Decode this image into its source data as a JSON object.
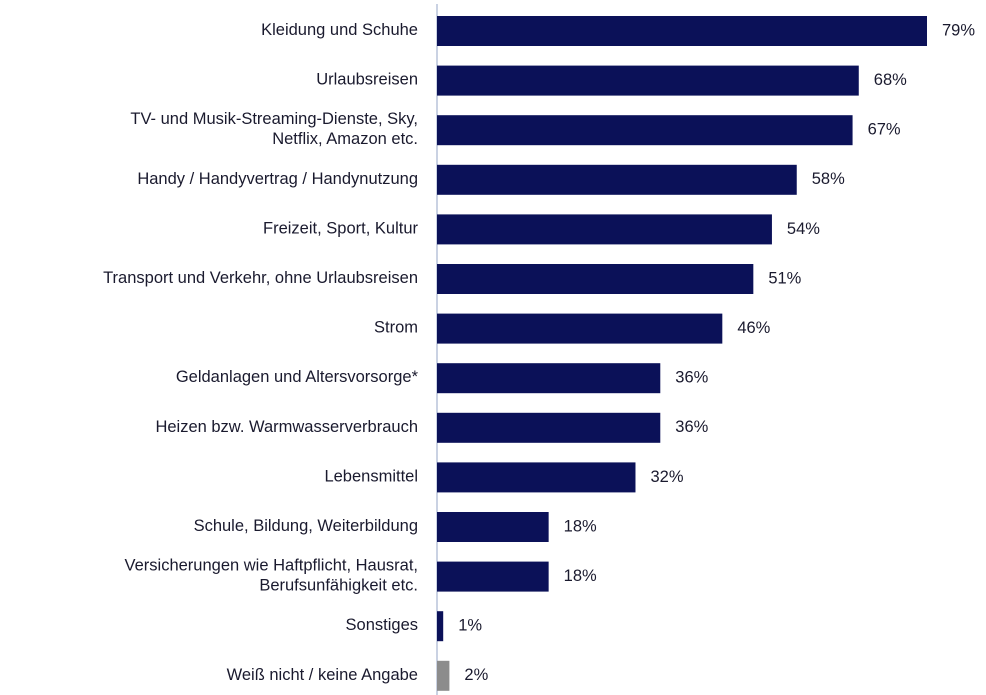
{
  "chart_data": {
    "type": "bar",
    "orientation": "horizontal",
    "categories": [
      "Kleidung und Schuhe",
      "Urlaubsreisen",
      "TV- und Musik-Streaming-Dienste, Sky,\nNetflix, Amazon etc.",
      "Handy / Handyvertrag / Handynutzung",
      "Freizeit, Sport, Kultur",
      "Transport und Verkehr, ohne Urlaubsreisen",
      "Strom",
      "Geldanlagen und Altersvorsorge*",
      "Heizen bzw. Warmwasserverbrauch",
      "Lebensmittel",
      "Schule, Bildung, Weiterbildung",
      "Versicherungen wie Haftpflicht, Hausrat,\nBerufsunfähigkeit etc.",
      "Sonstiges",
      "Weiß nicht / keine Angabe"
    ],
    "values": [
      79,
      68,
      67,
      58,
      54,
      51,
      46,
      36,
      36,
      32,
      18,
      18,
      1,
      2
    ],
    "value_labels": [
      "79%",
      "68%",
      "67%",
      "58%",
      "54%",
      "51%",
      "46%",
      "36%",
      "36%",
      "32%",
      "18%",
      "18%",
      "1%",
      "2%"
    ],
    "colors": [
      "#0b1158",
      "#0b1158",
      "#0b1158",
      "#0b1158",
      "#0b1158",
      "#0b1158",
      "#0b1158",
      "#0b1158",
      "#0b1158",
      "#0b1158",
      "#0b1158",
      "#0b1158",
      "#0b1158",
      "#8c8c8c"
    ]
  }
}
